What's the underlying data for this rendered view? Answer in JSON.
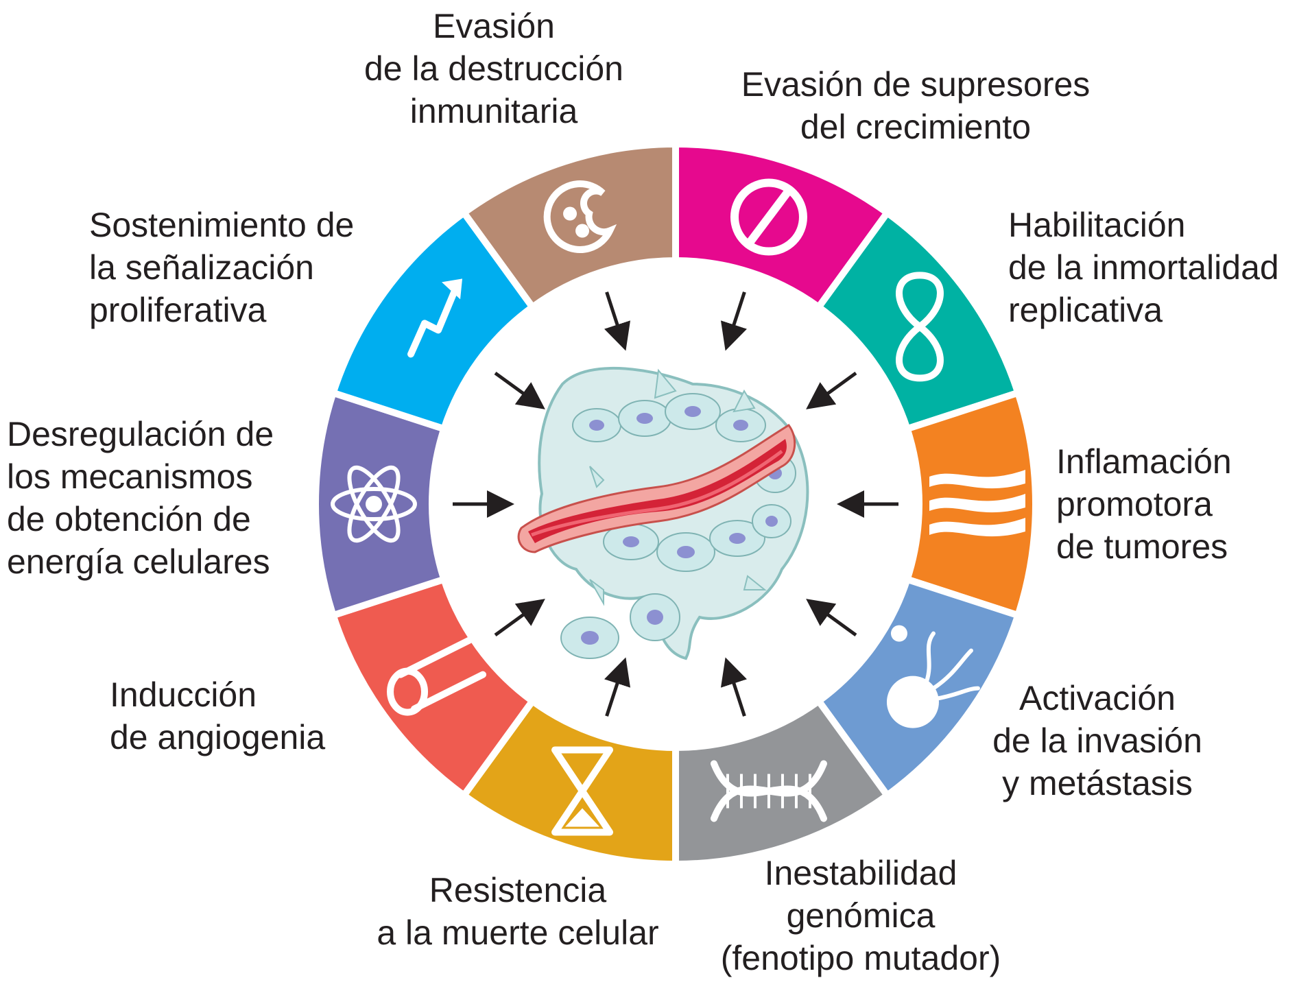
{
  "segments": [
    {
      "id": "immune",
      "label": [
        "Evasión",
        "de la destrucción",
        "inmunitaria"
      ],
      "color": "#b78a72",
      "icon": "immune-cell-icon"
    },
    {
      "id": "suppressors",
      "label": [
        "Evasión de supresores",
        "del crecimiento"
      ],
      "color": "#e6098e",
      "icon": "prohibited-icon"
    },
    {
      "id": "immortality",
      "label": [
        "Habilitación",
        "de la inmortalidad",
        "replicativa"
      ],
      "color": "#00b2a3",
      "icon": "infinity-icon"
    },
    {
      "id": "inflammation",
      "label": [
        "Inflamación",
        "promotora",
        "de tumores"
      ],
      "color": "#f38221",
      "icon": "flame-icon"
    },
    {
      "id": "metastasis",
      "label": [
        "Activación",
        "de la invasión",
        "y metástasis"
      ],
      "color": "#6e9bd2",
      "icon": "invading-cell-icon"
    },
    {
      "id": "genomic",
      "label": [
        "Inestabilidad",
        "genómica",
        "(fenotipo mutador)"
      ],
      "color": "#939598",
      "icon": "dna-icon"
    },
    {
      "id": "death",
      "label": [
        "Resistencia",
        "a la muerte celular"
      ],
      "color": "#e3a418",
      "icon": "hourglass-icon"
    },
    {
      "id": "angiogenesis",
      "label": [
        "Inducción",
        "de angiogenia"
      ],
      "color": "#ef5b50",
      "icon": "blood-vessel-icon"
    },
    {
      "id": "energy",
      "label": [
        "Desregulación de",
        "los mecanismos",
        "de obtención de",
        "energía celulares"
      ],
      "color": "#7570b3",
      "icon": "atom-icon"
    },
    {
      "id": "proliferative",
      "label": [
        "Sostenimiento de",
        "la señalización",
        "proliferativa"
      ],
      "color": "#00aeef",
      "icon": "up-arrow-icon"
    }
  ],
  "center": {
    "icon": "tumor-microenvironment-icon"
  }
}
